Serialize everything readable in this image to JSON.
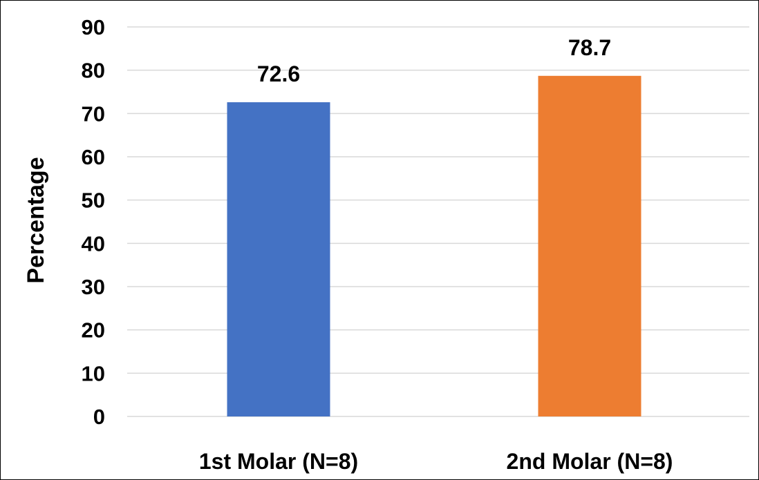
{
  "chart_data": {
    "type": "bar",
    "categories": [
      "1st Molar (N=8)",
      "2nd Molar (N=8)"
    ],
    "values": [
      72.6,
      78.7
    ],
    "data_labels": [
      "72.6",
      "78.7"
    ],
    "colors": [
      "#4472c4",
      "#ed7d31"
    ],
    "title": "",
    "xlabel": "",
    "ylabel": "Percentage",
    "ylim": [
      0,
      90
    ],
    "yticks": [
      0,
      10,
      20,
      30,
      40,
      50,
      60,
      70,
      80,
      90
    ],
    "grid": true,
    "legend": "none"
  }
}
